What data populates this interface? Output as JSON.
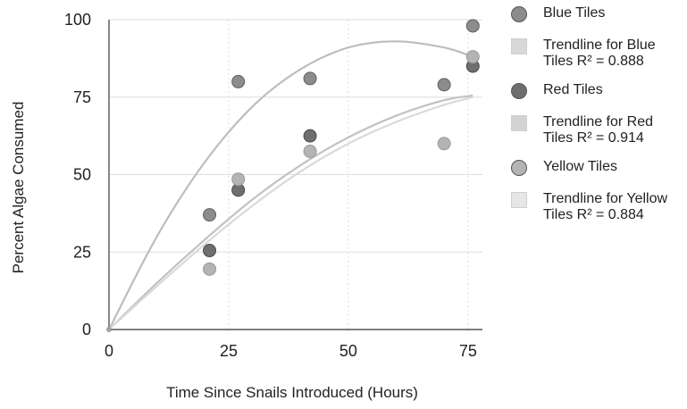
{
  "chart_data": {
    "type": "scatter",
    "title": "",
    "xlabel": "Time Since Snails Introduced (Hours)",
    "ylabel": "Percent Algae Consumed",
    "xlim": [
      0,
      78
    ],
    "ylim": [
      0,
      100
    ],
    "xticks": [
      "0",
      "25",
      "50",
      "75"
    ],
    "yticks": [
      "0",
      "25",
      "50",
      "75",
      "100"
    ],
    "grid": true,
    "legend_position": "right",
    "series": [
      {
        "name": "Blue Tiles",
        "color": "#8c8c8c",
        "points": [
          [
            0,
            0
          ],
          [
            21,
            37
          ],
          [
            27,
            80
          ],
          [
            42,
            81
          ],
          [
            70,
            79
          ],
          [
            76,
            98
          ]
        ]
      },
      {
        "name": "Red Tiles",
        "color": "#6e6e6e",
        "points": [
          [
            0,
            0
          ],
          [
            21,
            25.5
          ],
          [
            27,
            45
          ],
          [
            42,
            62.5
          ],
          [
            76,
            85
          ]
        ]
      },
      {
        "name": "Yellow Tiles",
        "color": "#b4b4b4",
        "points": [
          [
            0,
            0
          ],
          [
            21,
            19.5
          ],
          [
            27,
            48.5
          ],
          [
            42,
            57.5
          ],
          [
            70,
            60
          ],
          [
            76,
            88
          ]
        ]
      }
    ],
    "trendlines": [
      {
        "name": "Trendline for Blue Tiles R² = 0.888",
        "color": "#bdbdbd",
        "points": [
          [
            0,
            0
          ],
          [
            10,
            30
          ],
          [
            20,
            54
          ],
          [
            30,
            72
          ],
          [
            40,
            84
          ],
          [
            50,
            91
          ],
          [
            60,
            93
          ],
          [
            70,
            91
          ],
          [
            76,
            88
          ]
        ]
      },
      {
        "name": "Trendline for Red Tiles R² = 0.914",
        "color": "#c2c2c2",
        "points": [
          [
            0,
            0
          ],
          [
            10,
            15
          ],
          [
            20,
            29
          ],
          [
            30,
            42
          ],
          [
            40,
            53
          ],
          [
            50,
            62
          ],
          [
            60,
            69
          ],
          [
            70,
            74
          ],
          [
            76,
            75.5
          ]
        ]
      },
      {
        "name": "Trendline for Yellow Tiles R² = 0.884",
        "color": "#dadada",
        "points": [
          [
            0,
            0
          ],
          [
            10,
            14
          ],
          [
            20,
            27.5
          ],
          [
            30,
            40
          ],
          [
            40,
            51
          ],
          [
            50,
            60
          ],
          [
            60,
            67
          ],
          [
            70,
            72.5
          ],
          [
            76,
            75
          ]
        ]
      }
    ]
  },
  "legend": [
    {
      "label": "Blue Tiles",
      "kind": "dot",
      "color": "#8c8c8c"
    },
    {
      "label": "Trendline for Blue Tiles R² = 0.888",
      "kind": "square",
      "color": "#d8d8d8"
    },
    {
      "label": "Red Tiles",
      "kind": "dot",
      "color": "#6e6e6e"
    },
    {
      "label": "Trendline for Red Tiles R² = 0.914",
      "kind": "square",
      "color": "#d3d3d3"
    },
    {
      "label": "Yellow Tiles",
      "kind": "dot",
      "color": "#b4b4b4"
    },
    {
      "label": "Trendline for Yellow Tiles R² = 0.884",
      "kind": "square",
      "color": "#e6e6e6"
    }
  ]
}
